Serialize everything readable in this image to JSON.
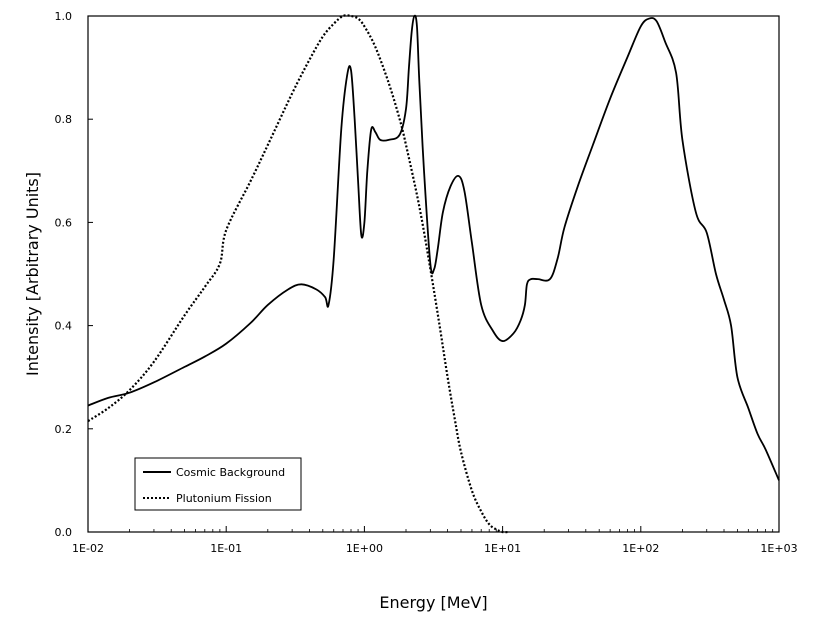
{
  "chart_data": {
    "type": "line",
    "title": "",
    "xlabel": "Energy [MeV]",
    "ylabel": "Intensity [Arbitrary Units]",
    "xscale": "log",
    "xlim": [
      0.01,
      1000
    ],
    "ylim": [
      0,
      1
    ],
    "grid": false,
    "legend_position": "bottom-left",
    "x_tick_labels": [
      "1E-02",
      "1E-01",
      "1E+00",
      "1E+01",
      "1E+02",
      "1E+03"
    ],
    "x_tick_values": [
      0.01,
      0.1,
      1,
      10,
      100,
      1000
    ],
    "y_tick_labels": [
      "0.0",
      "0.2",
      "0.4",
      "0.6",
      "0.8",
      "1.0"
    ],
    "y_tick_values": [
      0,
      0.2,
      0.4,
      0.6,
      0.8,
      1.0
    ],
    "series": [
      {
        "name": "Cosmic Background",
        "style": "solid",
        "color": "#000000",
        "x": [
          0.01,
          0.014,
          0.02,
          0.03,
          0.05,
          0.07,
          0.1,
          0.15,
          0.2,
          0.28,
          0.35,
          0.45,
          0.52,
          0.55,
          0.6,
          0.68,
          0.75,
          0.8,
          0.85,
          0.9,
          0.95,
          1.0,
          1.05,
          1.12,
          1.2,
          1.3,
          1.5,
          1.8,
          2.0,
          2.1,
          2.2,
          2.3,
          2.4,
          2.5,
          2.7,
          3.0,
          3.2,
          3.4,
          3.7,
          4.2,
          4.8,
          5.3,
          6.0,
          7.0,
          8.5,
          10,
          12,
          13.5,
          14.5,
          15,
          16,
          18,
          22,
          25,
          28,
          35,
          45,
          60,
          80,
          100,
          115,
          130,
          150,
          180,
          200,
          250,
          300,
          350,
          400,
          450,
          500,
          600,
          700,
          800,
          1000
        ],
        "y": [
          0.245,
          0.26,
          0.27,
          0.29,
          0.32,
          0.34,
          0.365,
          0.405,
          0.44,
          0.47,
          0.48,
          0.47,
          0.455,
          0.44,
          0.53,
          0.78,
          0.885,
          0.895,
          0.8,
          0.68,
          0.575,
          0.6,
          0.7,
          0.78,
          0.775,
          0.76,
          0.76,
          0.77,
          0.82,
          0.9,
          0.97,
          1.0,
          0.98,
          0.87,
          0.7,
          0.52,
          0.51,
          0.55,
          0.62,
          0.67,
          0.69,
          0.66,
          0.56,
          0.44,
          0.39,
          0.37,
          0.385,
          0.41,
          0.44,
          0.48,
          0.49,
          0.49,
          0.49,
          0.53,
          0.59,
          0.67,
          0.75,
          0.84,
          0.92,
          0.98,
          0.995,
          0.99,
          0.95,
          0.89,
          0.76,
          0.62,
          0.58,
          0.5,
          0.45,
          0.4,
          0.3,
          0.24,
          0.19,
          0.16,
          0.1
        ]
      },
      {
        "name": "Plutonium Fission",
        "style": "dotted",
        "color": "#000000",
        "x": [
          0.01,
          0.014,
          0.02,
          0.03,
          0.05,
          0.07,
          0.09,
          0.1,
          0.15,
          0.2,
          0.3,
          0.4,
          0.5,
          0.6,
          0.7,
          0.8,
          0.9,
          1.0,
          1.2,
          1.5,
          1.8,
          2.0,
          2.5,
          3.0,
          3.5,
          4.0,
          4.5,
          5.0,
          6.0,
          7.0,
          8.0,
          9.0,
          10,
          11
        ],
        "y": [
          0.215,
          0.24,
          0.275,
          0.33,
          0.42,
          0.475,
          0.52,
          0.585,
          0.68,
          0.75,
          0.85,
          0.915,
          0.96,
          0.985,
          1.0,
          1.0,
          0.995,
          0.98,
          0.94,
          0.87,
          0.8,
          0.75,
          0.63,
          0.51,
          0.4,
          0.3,
          0.22,
          0.155,
          0.08,
          0.04,
          0.015,
          0.005,
          0.0,
          0.0
        ]
      }
    ]
  }
}
